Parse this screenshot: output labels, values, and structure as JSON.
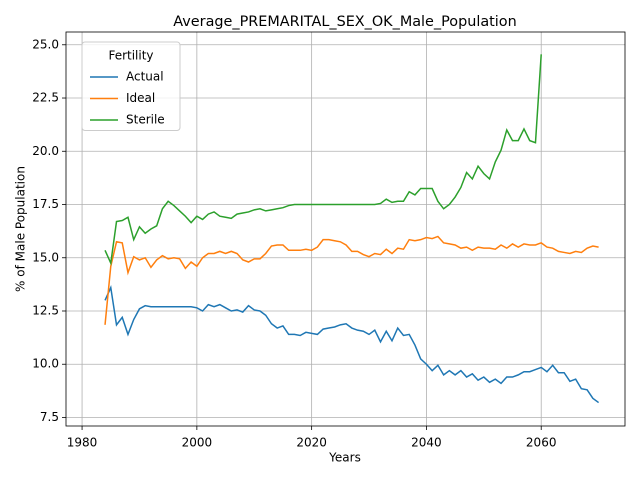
{
  "chart_data": {
    "type": "line",
    "title": "Average_PREMARITAL_SEX_OK_Male_Population",
    "x_label": "Years",
    "y_label": "% of Male Population",
    "legend_title": "Fertility",
    "legend_position": "upper left",
    "grid": true,
    "x": [
      1984,
      1985,
      1986,
      1987,
      1988,
      1989,
      1990,
      1991,
      1992,
      1993,
      1994,
      1995,
      1996,
      1997,
      1998,
      1999,
      2000,
      2001,
      2002,
      2003,
      2004,
      2005,
      2006,
      2007,
      2008,
      2009,
      2010,
      2011,
      2012,
      2013,
      2014,
      2015,
      2016,
      2017,
      2018,
      2019,
      2020,
      2021,
      2022,
      2023,
      2024,
      2025,
      2026,
      2027,
      2028,
      2029,
      2030,
      2031,
      2032,
      2033,
      2034,
      2035,
      2036,
      2037,
      2038,
      2039,
      2040,
      2041,
      2042,
      2043,
      2044,
      2045,
      2046,
      2047,
      2048,
      2049,
      2050,
      2051,
      2052,
      2053,
      2054,
      2055,
      2056,
      2057,
      2058,
      2059,
      2060,
      2061,
      2062,
      2063,
      2064,
      2065,
      2066,
      2067,
      2068,
      2069,
      2070
    ],
    "series": [
      {
        "name": "Actual",
        "color": "#1f77b4",
        "values": [
          13.0,
          13.6,
          11.85,
          12.2,
          11.4,
          12.1,
          12.6,
          12.75,
          12.7,
          12.7,
          12.7,
          12.7,
          12.7,
          12.7,
          12.7,
          12.7,
          12.65,
          12.5,
          12.8,
          12.7,
          12.8,
          12.65,
          12.5,
          12.55,
          12.45,
          12.75,
          12.55,
          12.5,
          12.3,
          11.9,
          11.7,
          11.8,
          11.4,
          11.4,
          11.35,
          11.5,
          11.45,
          11.4,
          11.65,
          11.7,
          11.75,
          11.85,
          11.9,
          11.7,
          11.6,
          11.55,
          11.4,
          11.6,
          11.05,
          11.55,
          11.1,
          11.7,
          11.35,
          11.4,
          10.9,
          10.25,
          10.0,
          9.7,
          9.95,
          9.5,
          9.7,
          9.5,
          9.7,
          9.4,
          9.55,
          9.25,
          9.4,
          9.15,
          9.3,
          9.1,
          9.4,
          9.4,
          9.5,
          9.65,
          9.65,
          9.75,
          9.85,
          9.65,
          9.95,
          9.6,
          9.6,
          9.2,
          9.3,
          8.85,
          8.8,
          8.4,
          8.2
        ]
      },
      {
        "name": "Ideal",
        "color": "#ff7f0e",
        "values": [
          11.85,
          14.6,
          15.75,
          15.7,
          14.3,
          15.05,
          14.9,
          15.0,
          14.55,
          14.9,
          15.1,
          14.95,
          15.0,
          14.95,
          14.5,
          14.8,
          14.6,
          15.0,
          15.2,
          15.2,
          15.3,
          15.2,
          15.3,
          15.2,
          14.9,
          14.8,
          14.95,
          14.95,
          15.2,
          15.55,
          15.6,
          15.6,
          15.35,
          15.35,
          15.35,
          15.4,
          15.35,
          15.5,
          15.85,
          15.85,
          15.8,
          15.75,
          15.6,
          15.3,
          15.3,
          15.15,
          15.05,
          15.2,
          15.15,
          15.4,
          15.2,
          15.45,
          15.4,
          15.85,
          15.8,
          15.85,
          15.95,
          15.9,
          16.0,
          15.7,
          15.65,
          15.6,
          15.45,
          15.5,
          15.35,
          15.5,
          15.45,
          15.45,
          15.4,
          15.6,
          15.45,
          15.65,
          15.5,
          15.65,
          15.6,
          15.6,
          15.7,
          15.5,
          15.45,
          15.3,
          15.25,
          15.2,
          15.3,
          15.25,
          15.45,
          15.55,
          15.5
        ]
      },
      {
        "name": "Sterile",
        "color": "#2ca02c",
        "values": [
          15.35,
          14.75,
          16.7,
          16.75,
          16.9,
          15.85,
          16.45,
          16.15,
          16.35,
          16.5,
          17.3,
          17.65,
          17.45,
          17.2,
          16.95,
          16.65,
          16.95,
          16.8,
          17.05,
          17.15,
          16.95,
          16.9,
          16.85,
          17.05,
          17.1,
          17.15,
          17.25,
          17.3,
          17.2,
          17.25,
          17.3,
          17.35,
          17.45,
          17.5,
          17.5,
          17.5,
          17.5,
          17.5,
          17.5,
          17.5,
          17.5,
          17.5,
          17.5,
          17.5,
          17.5,
          17.5,
          17.5,
          17.5,
          17.55,
          17.75,
          17.6,
          17.65,
          17.65,
          18.1,
          17.95,
          18.25,
          18.25,
          18.25,
          17.65,
          17.3,
          17.5,
          17.85,
          18.3,
          19.0,
          18.7,
          19.3,
          18.95,
          18.7,
          19.5,
          20.05,
          21.0,
          20.5,
          20.5,
          21.05,
          20.5,
          20.4,
          24.55,
          null,
          null,
          null,
          null,
          null,
          null,
          null,
          null,
          null,
          null
        ]
      }
    ],
    "xlim": [
      1977.2,
      2074.6
    ],
    "xticks": [
      1980,
      2000,
      2020,
      2040,
      2060
    ],
    "ylim": [
      7.1,
      25.6
    ],
    "yticks": [
      7.5,
      {
        "value": 10,
        "label": "10.0"
      },
      12.5,
      {
        "value": 15,
        "label": "15.0"
      },
      17.5,
      {
        "value": 20,
        "label": "20.0"
      },
      22.5,
      {
        "value": 25,
        "label": "25.0"
      }
    ]
  }
}
